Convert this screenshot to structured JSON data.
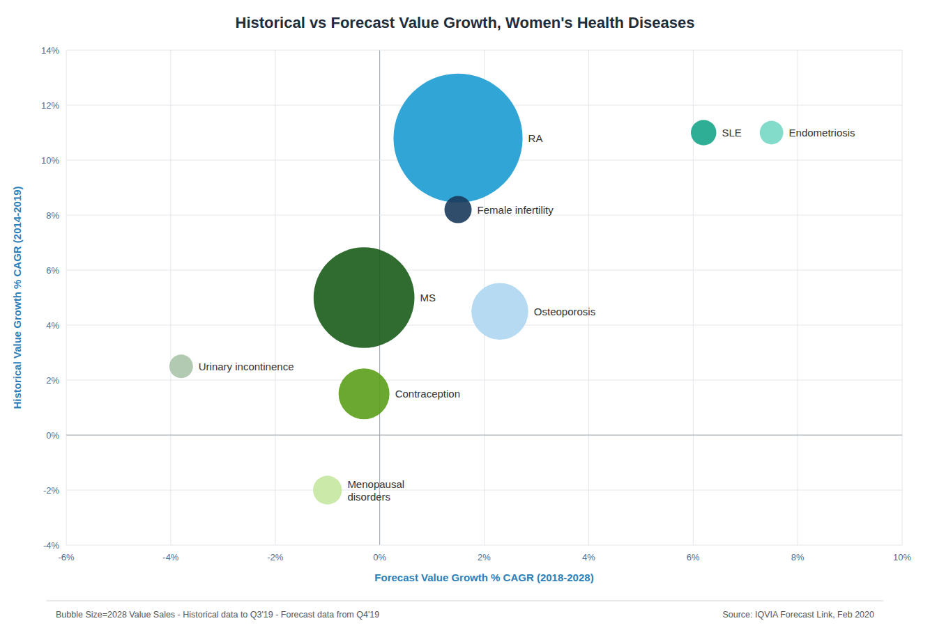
{
  "chart_data": {
    "type": "bubble",
    "title": "Historical vs Forecast Value Growth, Women's Health Diseases",
    "x_label": "Forecast Value Growth % CAGR (2018-2028)",
    "y_label": "Historical Value Growth % CAGR (2014-2019)",
    "annotations": [
      "Bubble Size=2028 Value Sales - Historical data to Q3'19 - Forecast data from Q4'19",
      "Source: IQVIA Forecast Link, Feb 2020"
    ],
    "labels": [
      "RA",
      "Female infertility",
      "MS",
      "Contraception",
      "Osteoporosis",
      "SLE",
      "Endometriosis",
      "Urinary incontinence",
      "Menopausal\ndisorders"
    ],
    "x": [
      1.5,
      1.5,
      -0.3,
      -0.3,
      2.3,
      6.2,
      7.5,
      -3.8,
      -1.0
    ],
    "values": [
      10.8,
      8.2,
      5.0,
      1.5,
      4.5,
      11.0,
      11.0,
      2.5,
      -2.0
    ],
    "sizes": [
      18000,
      800,
      11000,
      2800,
      3500,
      700,
      600,
      600,
      900
    ],
    "colors": [
      "#1B9BD1",
      "#1A3A5C",
      "#1A5C1A",
      "#5A9E1A",
      "#AED6F1",
      "#17A589",
      "#76D7C4",
      "#A9C4A9",
      "#C5E8A0"
    ],
    "xlim": [
      -6,
      10
    ],
    "ylim": [
      -4,
      14
    ],
    "xticks": [
      {
        "value": -6,
        "label": "-6%"
      },
      {
        "value": -4,
        "label": "-4%"
      },
      {
        "value": -2,
        "label": "-2%"
      },
      {
        "value": 0,
        "label": "0%"
      },
      {
        "value": 2,
        "label": "2%"
      },
      {
        "value": 4,
        "label": "4%"
      },
      {
        "value": 6,
        "label": "6%"
      },
      {
        "value": 8,
        "label": "8%"
      },
      {
        "value": 10,
        "label": "10%"
      }
    ],
    "yticks": [
      {
        "value": -4,
        "label": "-4%"
      },
      {
        "value": -2,
        "label": "-2%"
      },
      {
        "value": 0,
        "label": "0%"
      },
      {
        "value": 2,
        "label": "2%"
      },
      {
        "value": 4,
        "label": "4%"
      },
      {
        "value": 6,
        "label": "6%"
      },
      {
        "value": 8,
        "label": "8%"
      },
      {
        "value": 10,
        "label": "10%"
      },
      {
        "value": 12,
        "label": "12%"
      },
      {
        "value": 14,
        "label": "14%"
      }
    ],
    "grid": true
  }
}
